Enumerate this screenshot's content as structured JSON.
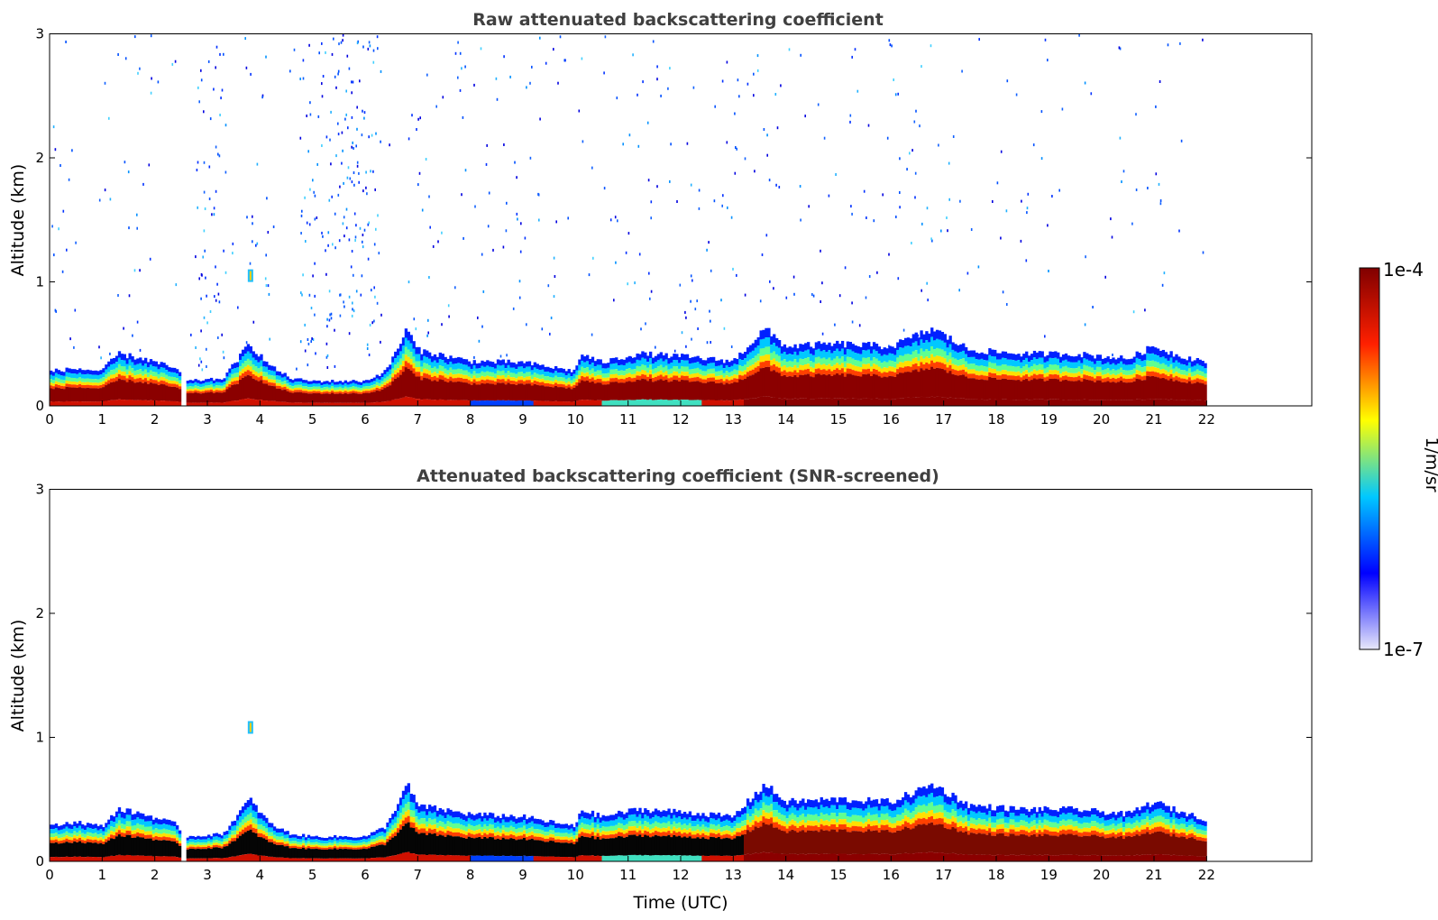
{
  "chart_data": [
    {
      "type": "heatmap",
      "title": "Raw attenuated backscattering coefficient",
      "xlabel": "",
      "ylabel": "Altitude (km)",
      "xlim": [
        0,
        24
      ],
      "ylim": [
        0,
        3
      ],
      "xticks": [
        "0",
        "1",
        "2",
        "3",
        "4",
        "5",
        "6",
        "7",
        "8",
        "9",
        "10",
        "11",
        "12",
        "13",
        "14",
        "15",
        "16",
        "17",
        "18",
        "19",
        "20",
        "21",
        "22"
      ],
      "yticks": [
        "0",
        "1",
        "2",
        "3"
      ],
      "data_gaps_hours": [
        [
          2.48,
          2.6
        ],
        [
          22,
          24
        ]
      ],
      "aerosol_layer_top_km": [
        [
          0,
          0.28
        ],
        [
          0.5,
          0.3
        ],
        [
          1,
          0.28
        ],
        [
          1.3,
          0.42
        ],
        [
          1.8,
          0.38
        ],
        [
          2.4,
          0.3
        ],
        [
          2.6,
          0.2
        ],
        [
          3.3,
          0.22
        ],
        [
          3.8,
          0.5
        ],
        [
          4.2,
          0.32
        ],
        [
          4.6,
          0.22
        ],
        [
          5,
          0.2
        ],
        [
          6,
          0.2
        ],
        [
          6.4,
          0.28
        ],
        [
          6.8,
          0.62
        ],
        [
          7,
          0.45
        ],
        [
          8,
          0.36
        ],
        [
          9,
          0.35
        ],
        [
          10,
          0.28
        ],
        [
          10.1,
          0.42
        ],
        [
          10.5,
          0.35
        ],
        [
          11.2,
          0.42
        ],
        [
          12,
          0.4
        ],
        [
          13,
          0.36
        ],
        [
          13.6,
          0.62
        ],
        [
          14,
          0.48
        ],
        [
          15,
          0.5
        ],
        [
          16,
          0.48
        ],
        [
          16.8,
          0.62
        ],
        [
          17.5,
          0.45
        ],
        [
          18.5,
          0.42
        ],
        [
          19.5,
          0.42
        ],
        [
          20.5,
          0.38
        ],
        [
          21,
          0.48
        ],
        [
          21.5,
          0.4
        ],
        [
          22,
          0.36
        ]
      ],
      "isolated_feature": {
        "x_hours": 3.82,
        "altitude_km": 1.05
      }
    },
    {
      "type": "heatmap",
      "title": "Attenuated backscattering coefficient (SNR-screened)",
      "xlabel": "Time (UTC)",
      "ylabel": "Altitude (km)",
      "xlim": [
        0,
        24
      ],
      "ylim": [
        0,
        3
      ],
      "xticks": [
        "0",
        "1",
        "2",
        "3",
        "4",
        "5",
        "6",
        "7",
        "8",
        "9",
        "10",
        "11",
        "12",
        "13",
        "14",
        "15",
        "16",
        "17",
        "18",
        "19",
        "20",
        "21",
        "22"
      ],
      "yticks": [
        "0",
        "1",
        "2",
        "3"
      ],
      "data_gaps_hours": [
        [
          2.48,
          2.6
        ],
        [
          22,
          24
        ]
      ],
      "aerosol_layer_top_km": [
        [
          0,
          0.28
        ],
        [
          0.5,
          0.32
        ],
        [
          1,
          0.28
        ],
        [
          1.3,
          0.42
        ],
        [
          1.8,
          0.38
        ],
        [
          2.4,
          0.3
        ],
        [
          2.6,
          0.2
        ],
        [
          3.3,
          0.22
        ],
        [
          3.8,
          0.5
        ],
        [
          4.2,
          0.3
        ],
        [
          4.6,
          0.22
        ],
        [
          5,
          0.2
        ],
        [
          6,
          0.2
        ],
        [
          6.4,
          0.28
        ],
        [
          6.8,
          0.62
        ],
        [
          7,
          0.45
        ],
        [
          8,
          0.38
        ],
        [
          9,
          0.36
        ],
        [
          10,
          0.28
        ],
        [
          10.1,
          0.42
        ],
        [
          10.5,
          0.36
        ],
        [
          11.2,
          0.42
        ],
        [
          12,
          0.4
        ],
        [
          13,
          0.36
        ],
        [
          13.6,
          0.62
        ],
        [
          14,
          0.48
        ],
        [
          15,
          0.5
        ],
        [
          16,
          0.48
        ],
        [
          16.8,
          0.62
        ],
        [
          17.5,
          0.45
        ],
        [
          18.5,
          0.42
        ],
        [
          19.5,
          0.42
        ],
        [
          20.5,
          0.38
        ],
        [
          21,
          0.48
        ],
        [
          21.5,
          0.4
        ],
        [
          22,
          0.34
        ]
      ],
      "isolated_feature": {
        "x_hours": 3.82,
        "altitude_km": 1.08
      }
    }
  ],
  "colorbar": {
    "label": "1/m/sr",
    "max_label": "1e-4",
    "min_label": "1e-7",
    "colors": [
      "#e8e8fa",
      "#0000ff",
      "#00c8ff",
      "#ffff00",
      "#ff2000",
      "#800000"
    ]
  }
}
